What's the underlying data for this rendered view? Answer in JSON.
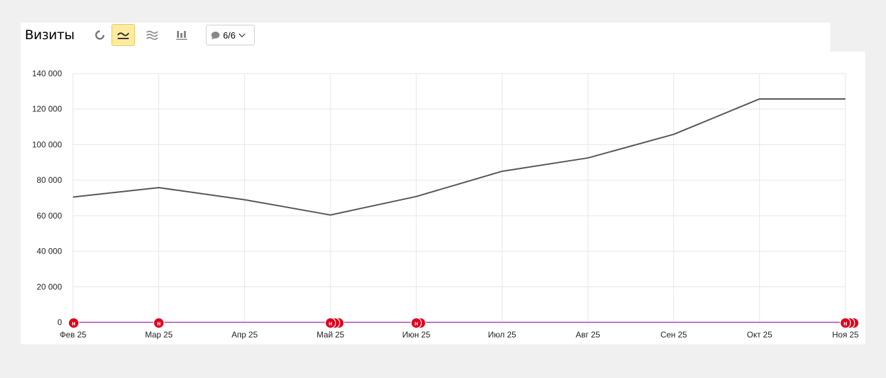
{
  "header": {
    "title": "Визиты",
    "chart_modes": [
      {
        "icon": "pie-chart-icon",
        "active": false
      },
      {
        "icon": "line-chart-icon",
        "active": true
      },
      {
        "icon": "area-chart-icon",
        "active": false
      },
      {
        "icon": "bar-chart-icon",
        "active": false
      }
    ],
    "notes_filter": {
      "icon": "comment-icon",
      "value": "6/6"
    }
  },
  "colors": {
    "accent_active": "#ffeba0",
    "line": "#555555",
    "baseline": "#8e24aa",
    "note_marker": "#e0001b"
  },
  "chart_data": {
    "type": "line",
    "categories": [
      "Фев 25",
      "Мар 25",
      "Апр 25",
      "Май 25",
      "Июн 25",
      "Июл 25",
      "Авг 25",
      "Сен 25",
      "Окт 25",
      "Ноя 25"
    ],
    "series": [
      {
        "values": [
          70500,
          75800,
          69000,
          60400,
          70800,
          85000,
          92500,
          105800,
          125700,
          125700
        ]
      },
      {
        "values": [
          0,
          0,
          0,
          0,
          0,
          0,
          0,
          0,
          0,
          0
        ]
      }
    ],
    "y_ticks": [
      0,
      20000,
      40000,
      60000,
      80000,
      100000,
      120000,
      140000
    ],
    "y_tick_labels": [
      "0",
      "20 000",
      "40 000",
      "60 000",
      "80 000",
      "100 000",
      "120 000",
      "140 000"
    ],
    "ylim": [
      0,
      140000
    ],
    "grid": true,
    "note_markers": [
      {
        "category": "Фев 25",
        "count": 1,
        "label": "н"
      },
      {
        "category": "Мар 25",
        "count": 1,
        "label": "н"
      },
      {
        "category": "Май 25",
        "count": 3,
        "label": "н"
      },
      {
        "category": "Июн 25",
        "count": 2,
        "label": "н"
      },
      {
        "category": "Ноя 25",
        "count": 3,
        "label": "н"
      }
    ]
  }
}
